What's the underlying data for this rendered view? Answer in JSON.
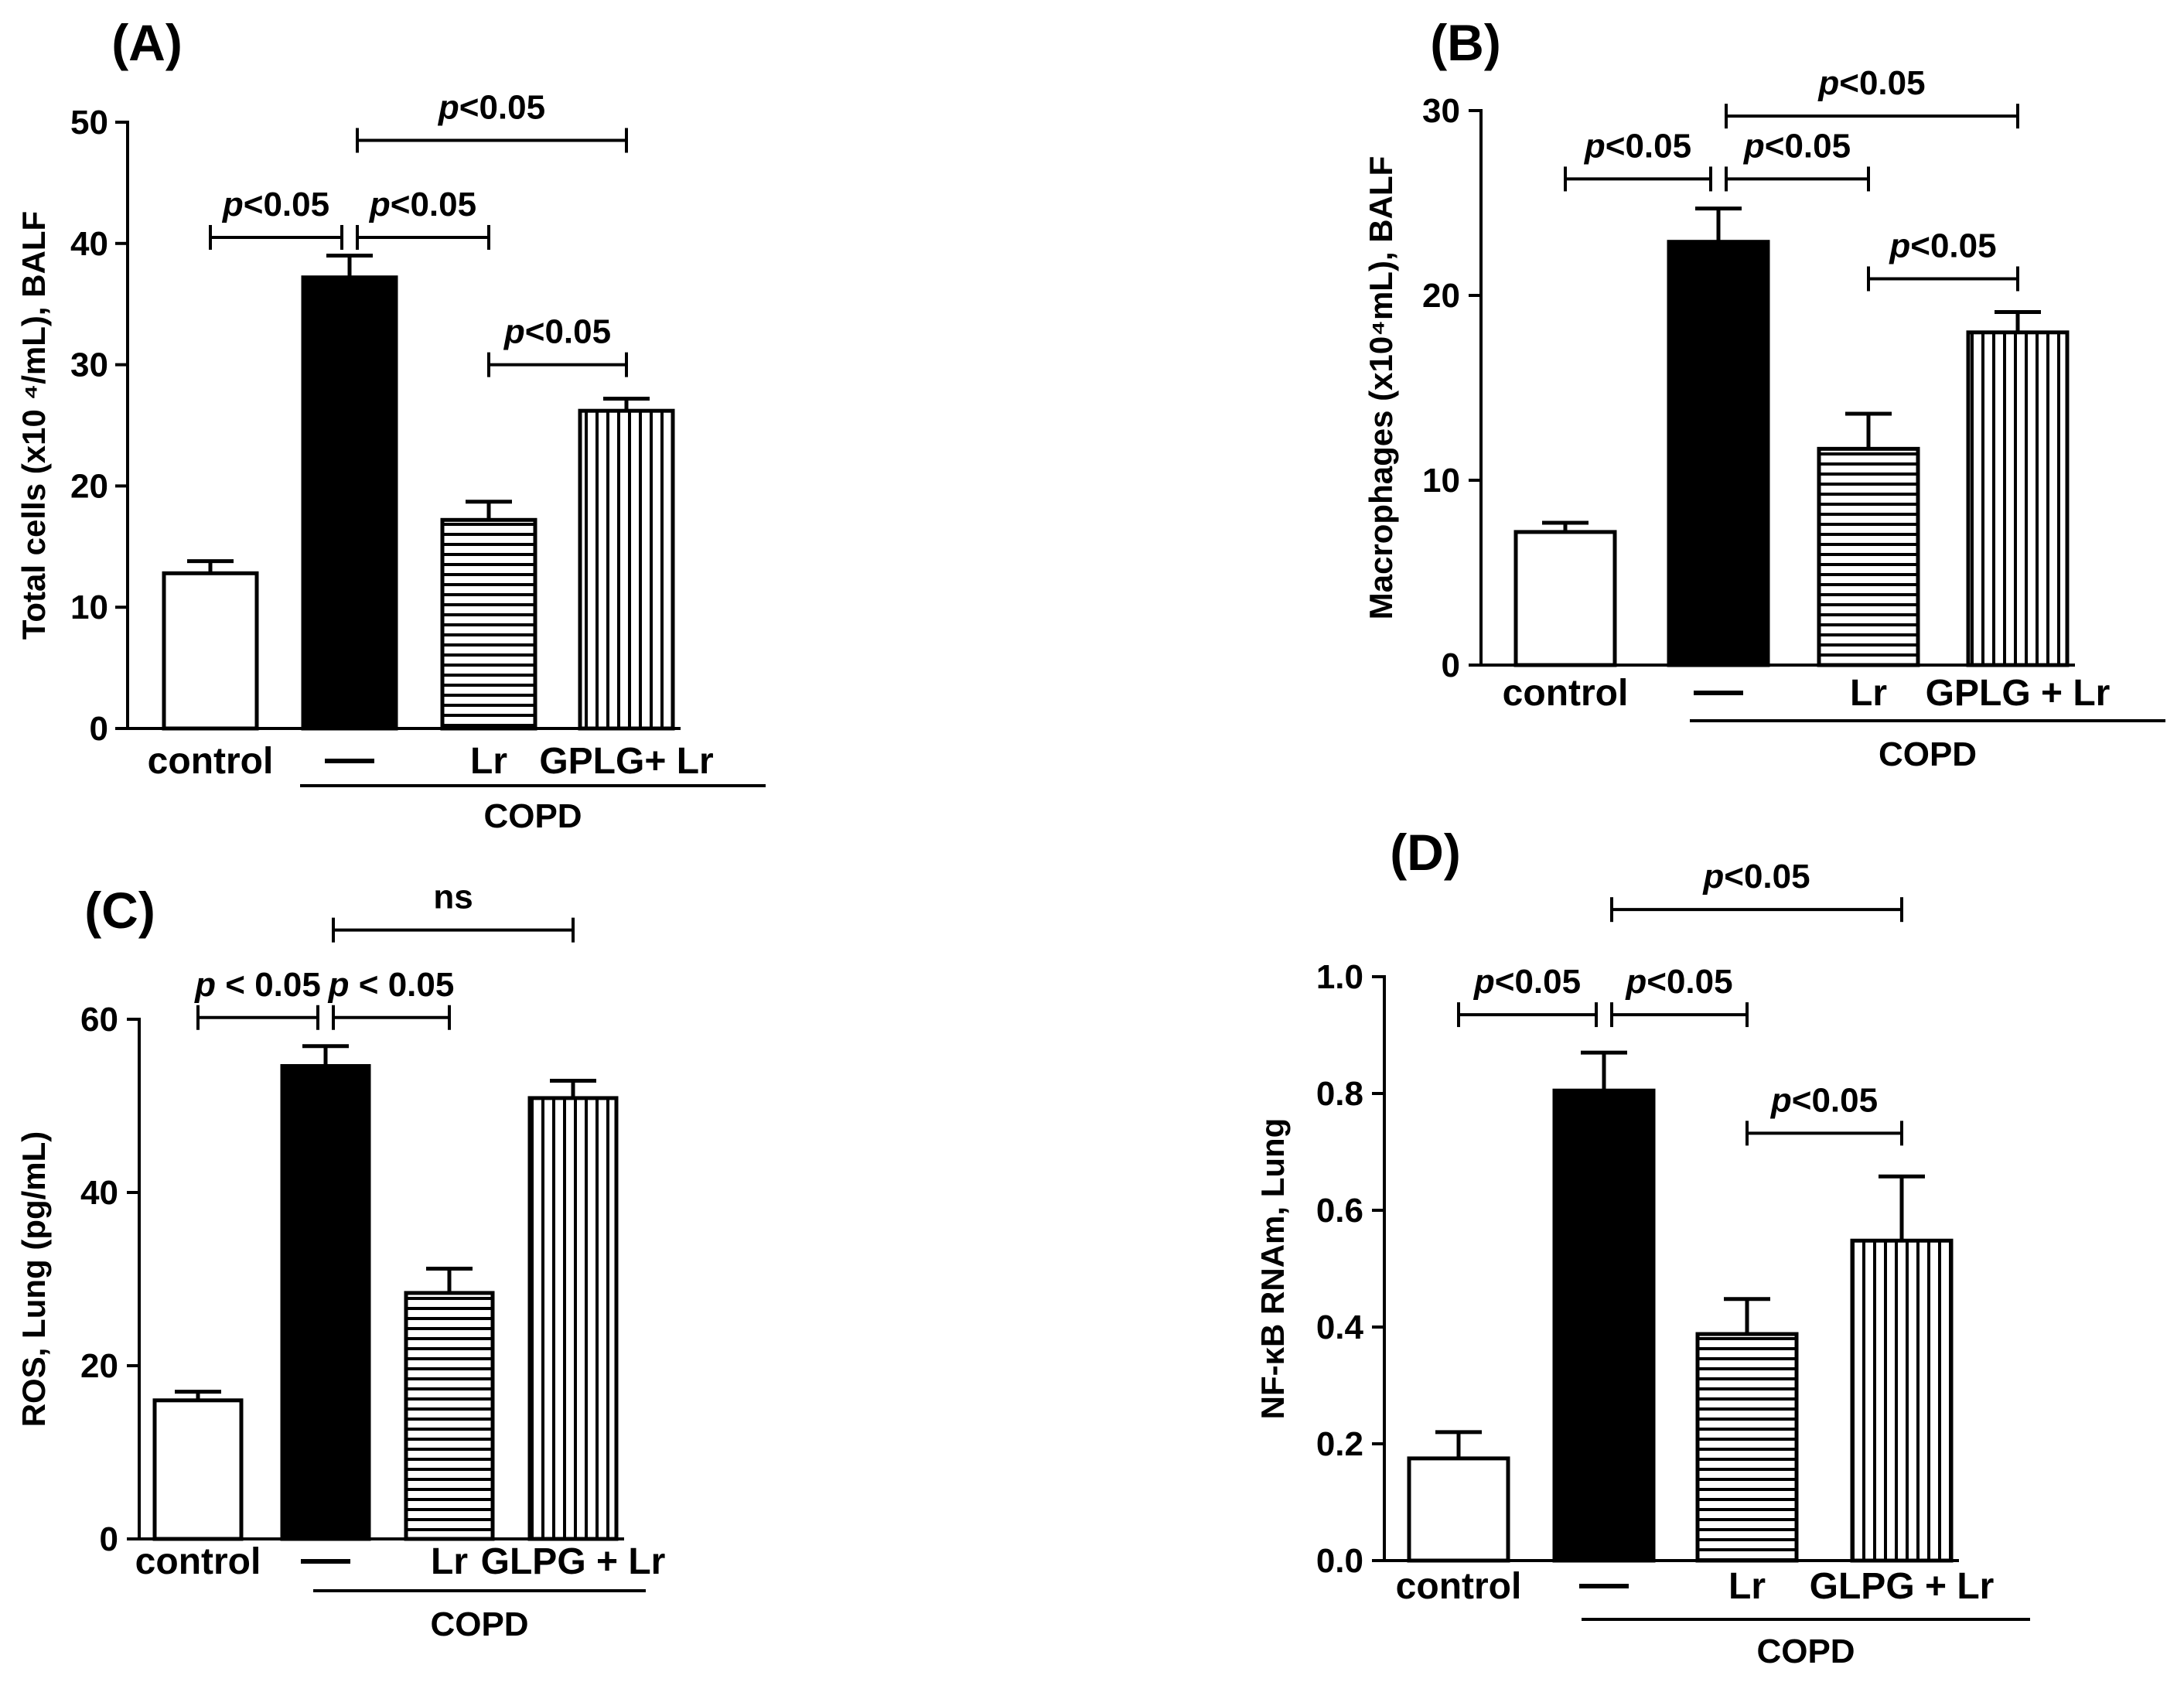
{
  "colors": {
    "axis": "#000000",
    "bar_black": "#000000",
    "bar_white": "#ffffff",
    "hatch": "#000000"
  },
  "chart_data": [
    {
      "type": "bar",
      "panel": "(A)",
      "categories": [
        "control",
        "—",
        "Lr",
        "GPLG+ Lr"
      ],
      "fills": [
        "white",
        "black",
        "horizontal-hatch",
        "vertical-hatch"
      ],
      "values": [
        12.8,
        37.2,
        17.2,
        26.2
      ],
      "errors": [
        1.0,
        1.8,
        1.5,
        1.0
      ],
      "ylabel": "Total cells (x10 ⁴/mL), BALF",
      "ylim": [
        0,
        50
      ],
      "yticks": [
        0,
        10,
        20,
        30,
        40,
        50
      ],
      "group_label": "COPD",
      "group_span": [
        1,
        3
      ],
      "comparisons": [
        {
          "from": 0,
          "to": 1,
          "label": "p<0.05",
          "level": 40.5
        },
        {
          "from": 1,
          "to": 2,
          "label": "p<0.05",
          "level": 40.5
        },
        {
          "from": 1,
          "to": 3,
          "label": "p<0.05",
          "level": 48.5
        },
        {
          "from": 2,
          "to": 3,
          "label": "p<0.05",
          "level": 30.0
        }
      ]
    },
    {
      "type": "bar",
      "panel": "(B)",
      "categories": [
        "control",
        "—",
        "Lr",
        "GPLG + Lr"
      ],
      "fills": [
        "white",
        "black",
        "horizontal-hatch",
        "vertical-hatch"
      ],
      "values": [
        7.2,
        22.9,
        11.7,
        18.0
      ],
      "errors": [
        0.5,
        1.8,
        1.9,
        1.1
      ],
      "ylabel": "Macrophages (x10⁴mL), BALF",
      "ylim": [
        0,
        30
      ],
      "yticks": [
        0,
        10,
        20,
        30
      ],
      "group_label": "COPD",
      "group_span": [
        1,
        3
      ],
      "comparisons": [
        {
          "from": 0,
          "to": 1,
          "label": "p<0.05",
          "level": 26.3
        },
        {
          "from": 1,
          "to": 2,
          "label": "p<0.05",
          "level": 26.3
        },
        {
          "from": 1,
          "to": 3,
          "label": "p<0.05",
          "level": 29.7
        },
        {
          "from": 2,
          "to": 3,
          "label": "p<0.05",
          "level": 20.9
        }
      ]
    },
    {
      "type": "bar",
      "panel": "(C)",
      "categories": [
        "control",
        "—",
        "Lr",
        "GLPG + Lr"
      ],
      "fills": [
        "white",
        "black",
        "horizontal-hatch",
        "vertical-hatch"
      ],
      "values": [
        16.0,
        54.6,
        28.4,
        50.9
      ],
      "errors": [
        1.0,
        2.3,
        2.8,
        2.0
      ],
      "ylabel": "ROS, Lung (pg/mL)",
      "ylim": [
        0,
        60
      ],
      "yticks": [
        0,
        20,
        40,
        60
      ],
      "group_label": "COPD",
      "group_span": [
        1,
        3
      ],
      "comparisons": [
        {
          "from": 0,
          "to": 1,
          "label": "p < 0.05",
          "level": 60.2
        },
        {
          "from": 1,
          "to": 2,
          "label": "p < 0.05",
          "level": 60.2
        },
        {
          "from": 1,
          "to": 3,
          "label": "ns",
          "level": 70.3
        }
      ]
    },
    {
      "type": "bar",
      "panel": "(D)",
      "categories": [
        "control",
        "—",
        "Lr",
        "GLPG + Lr"
      ],
      "fills": [
        "white",
        "black",
        "horizontal-hatch",
        "vertical-hatch"
      ],
      "values": [
        0.175,
        0.805,
        0.388,
        0.548
      ],
      "errors": [
        0.045,
        0.065,
        0.06,
        0.11
      ],
      "ylabel": "NF-κB RNAm, Lung",
      "ylim": [
        0,
        1.0
      ],
      "yticks": [
        "0.0",
        "0.2",
        "0.4",
        "0.6",
        "0.8",
        "1.0"
      ],
      "group_label": "COPD",
      "group_span": [
        1,
        3
      ],
      "comparisons": [
        {
          "from": 0,
          "to": 1,
          "label": "p<0.05",
          "level": 0.935
        },
        {
          "from": 1,
          "to": 2,
          "label": "p<0.05",
          "level": 0.935
        },
        {
          "from": 1,
          "to": 3,
          "label": "p<0.05",
          "level": 1.115
        },
        {
          "from": 2,
          "to": 3,
          "label": "p<0.05",
          "level": 0.732
        }
      ]
    }
  ]
}
